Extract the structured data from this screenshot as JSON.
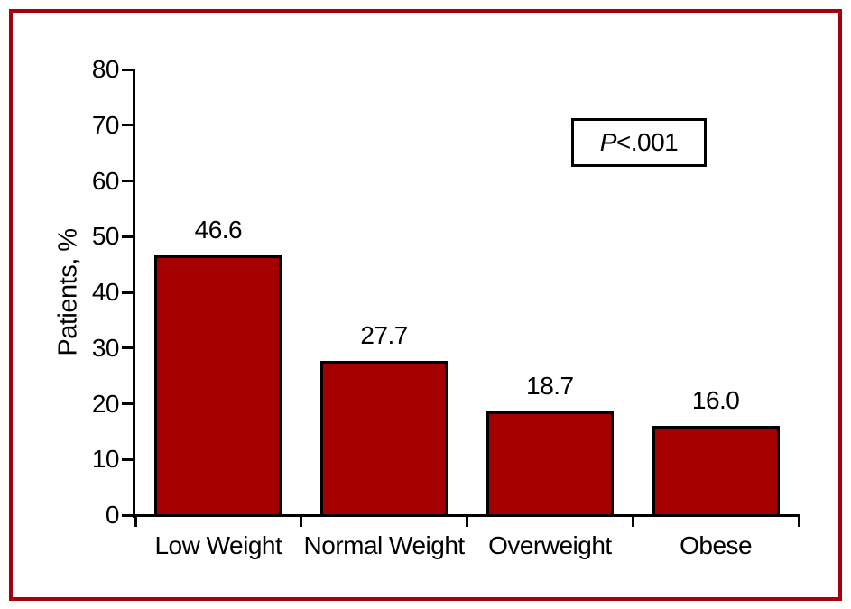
{
  "chart_data": {
    "type": "bar",
    "title": "",
    "categories": [
      "Low Weight",
      "Normal Weight",
      "Overweight",
      "Obese"
    ],
    "values": [
      46.6,
      27.7,
      18.7,
      16.0
    ],
    "value_labels": [
      "46.6",
      "27.7",
      "18.7",
      "16.0"
    ],
    "xlabel": "",
    "ylabel": "Patients, %",
    "ylim": [
      0,
      80
    ],
    "ytick_interval": 10,
    "ytick_labels": [
      "0",
      "10",
      "20",
      "30",
      "40",
      "50",
      "60",
      "70",
      "80"
    ],
    "grid": false,
    "legend_position": "none",
    "annotation": {
      "text": "P<.001",
      "italic_part": "P",
      "rest": "<.001"
    },
    "colors": {
      "bar_fill": "#A40000",
      "bar_border": "#000000",
      "axis": "#000000",
      "text": "#000000",
      "frame_border": "#A6000F",
      "background": "#FFFFFF"
    }
  }
}
